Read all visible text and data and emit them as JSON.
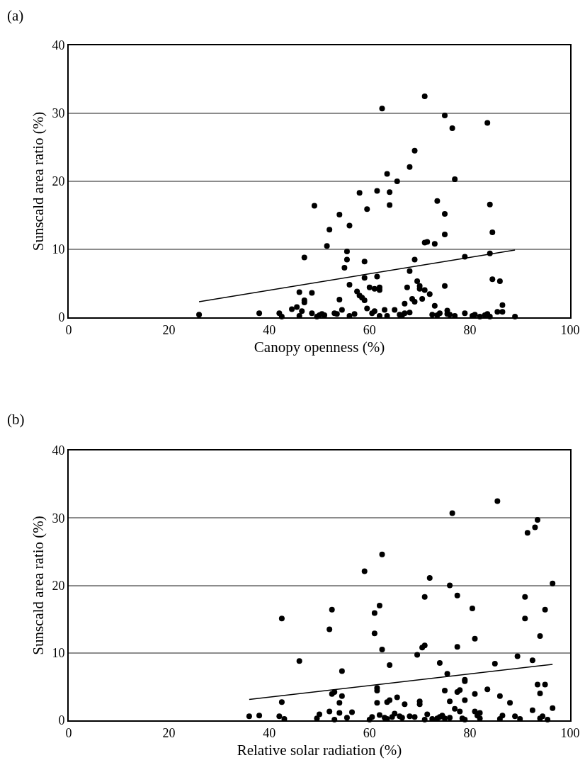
{
  "chart_data": [
    {
      "type": "scatter",
      "annotations": [
        "(a)"
      ],
      "xlabel": "Canopy openness (%)",
      "ylabel": "Sunscald area ratio (%)",
      "xlim": [
        0,
        100
      ],
      "xticks": [
        0,
        20,
        40,
        60,
        80,
        100
      ],
      "ylim": [
        0,
        40
      ],
      "yticks": [
        0,
        10,
        20,
        30,
        40
      ],
      "grid": "y",
      "series": [
        {
          "marker": "circle",
          "color": "#000000",
          "x": [
            26,
            38,
            42,
            42.5,
            44.5,
            45.5,
            46,
            46,
            46.5,
            47,
            47,
            47,
            48.5,
            48.5,
            49,
            49.5,
            50,
            50.5,
            51,
            51.5,
            52,
            53,
            53.5,
            54,
            54,
            54.5,
            55,
            55.5,
            55.5,
            56,
            56,
            56,
            57,
            57.5,
            58,
            58,
            58.5,
            59,
            59,
            59,
            59.5,
            59.5,
            60,
            60.5,
            61,
            61,
            61.5,
            61.5,
            62,
            62,
            62.5,
            62,
            63,
            63.5,
            63.5,
            64,
            64,
            65,
            65.5,
            66,
            66.5,
            67,
            67,
            67.5,
            68,
            68,
            68,
            68.5,
            69,
            69,
            69,
            69.5,
            70,
            70,
            70.5,
            71,
            71,
            71,
            71.5,
            72,
            72.5,
            73,
            73,
            73.5,
            73.5,
            74,
            75,
            75,
            75,
            75,
            75.5,
            75.5,
            76,
            76.5,
            77,
            77,
            79,
            79,
            80.5,
            81,
            82,
            83,
            83.5,
            83.5,
            84,
            84,
            84,
            84.5,
            84.5,
            85.5,
            86,
            86.5,
            86.5,
            89
          ],
          "values": [
            0.4,
            0.6,
            0.6,
            0.1,
            1.2,
            1.5,
            3.7,
            0.2,
            0.9,
            2.5,
            2.2,
            8.8,
            3.6,
            0.6,
            16.4,
            0.1,
            0.3,
            0.5,
            0.3,
            10.5,
            12.9,
            0.6,
            0.5,
            15.1,
            2.6,
            1.1,
            7.3,
            9.7,
            8.5,
            13.5,
            4.8,
            0.2,
            0.5,
            3.8,
            18.3,
            3.2,
            2.9,
            5.8,
            8.2,
            2.5,
            15.9,
            1.3,
            4.4,
            0.6,
            4.2,
            0.9,
            18.6,
            6.0,
            4.0,
            4.4,
            30.7,
            0.2,
            1.1,
            21.1,
            0.2,
            18.4,
            16.5,
            1.1,
            20.0,
            0.4,
            0.3,
            2.0,
            0.6,
            4.4,
            22.1,
            6.8,
            0.7,
            2.7,
            24.5,
            8.5,
            2.3,
            5.3,
            4.6,
            4.2,
            2.7,
            32.5,
            11.0,
            4.0,
            11.1,
            3.4,
            0.4,
            10.8,
            1.7,
            17.1,
            0.3,
            0.6,
            29.7,
            4.6,
            15.2,
            12.2,
            1.0,
            0.5,
            0.4,
            27.8,
            20.3,
            0.2,
            0.6,
            8.9,
            0.2,
            0.4,
            0.1,
            0.3,
            28.6,
            0.5,
            16.6,
            9.4,
            0.1,
            12.5,
            5.6,
            0.8,
            5.3,
            0.8,
            1.8,
            0.1
          ]
        },
        {
          "type": "line",
          "line_style": "solid",
          "color": "#000000",
          "x": [
            26,
            89
          ],
          "values": [
            2.3,
            9.9
          ]
        }
      ]
    },
    {
      "type": "scatter",
      "annotations": [
        "(b)"
      ],
      "xlabel": "Relative solar radiation (%)",
      "ylabel": "Sunscald area ratio (%)",
      "xlim": [
        0,
        100
      ],
      "xticks": [
        0,
        20,
        40,
        60,
        80,
        100
      ],
      "ylim": [
        0,
        40
      ],
      "yticks": [
        0,
        10,
        20,
        30,
        40
      ],
      "grid": "y",
      "series": [
        {
          "marker": "circle",
          "color": "#000000",
          "x": [
            36,
            38,
            42,
            42.5,
            42.5,
            43,
            46,
            49.5,
            50,
            52,
            52,
            52.5,
            52.5,
            53,
            53,
            54,
            54,
            54.5,
            54.5,
            55.5,
            56.5,
            59,
            60,
            60.5,
            61,
            61,
            61.5,
            61.5,
            61.5,
            62,
            62,
            62.5,
            62.5,
            63,
            63.5,
            63.5,
            64,
            64,
            64.5,
            65,
            65.5,
            66,
            66.5,
            67,
            68,
            69,
            69.5,
            70,
            70,
            70.5,
            71,
            71,
            71,
            71.5,
            72,
            72.5,
            73.5,
            74,
            74,
            74.5,
            75,
            75,
            75.5,
            76,
            76,
            76,
            76.5,
            77,
            77.5,
            77.5,
            77.5,
            78,
            78,
            78.5,
            79,
            79,
            79,
            79,
            80.5,
            81,
            81,
            81,
            81.5,
            82,
            82,
            83.5,
            85,
            85.5,
            86,
            86,
            86.5,
            88,
            89,
            89.5,
            90,
            91,
            91,
            91.5,
            92.5,
            92.5,
            93,
            93.5,
            93.5,
            94,
            94,
            94,
            94.5,
            95,
            95,
            95.5,
            96.5,
            96.5
          ],
          "values": [
            0.6,
            0.7,
            0.6,
            2.7,
            15.1,
            0.2,
            8.8,
            0.3,
            0.9,
            13.5,
            1.3,
            16.4,
            3.9,
            4.2,
            0.1,
            2.6,
            1.1,
            7.3,
            3.6,
            0.4,
            1.2,
            22.1,
            0.1,
            0.5,
            15.9,
            12.9,
            4.4,
            4.8,
            2.6,
            0.8,
            17.0,
            10.5,
            24.6,
            0.4,
            2.7,
            0.2,
            8.2,
            3.0,
            0.5,
            1.0,
            3.4,
            0.6,
            0.4,
            2.4,
            0.6,
            0.5,
            9.7,
            2.8,
            2.4,
            10.8,
            11.1,
            18.3,
            0.1,
            0.9,
            21.1,
            0.2,
            0.3,
            8.5,
            0.5,
            0.7,
            4.4,
            0.3,
            6.9,
            0.4,
            2.8,
            20.0,
            30.7,
            1.7,
            18.5,
            4.2,
            10.9,
            4.5,
            1.3,
            0.3,
            6.0,
            5.8,
            0.1,
            3.0,
            16.6,
            3.9,
            12.1,
            1.3,
            0.7,
            1.1,
            0.3,
            4.6,
            8.4,
            32.5,
            3.6,
            0.2,
            0.7,
            2.6,
            0.6,
            9.5,
            0.2,
            18.3,
            15.1,
            27.8,
            8.9,
            1.5,
            28.6,
            5.3,
            29.7,
            12.5,
            4.0,
            0.3,
            0.6,
            5.3,
            16.4,
            0.1,
            20.3,
            1.8
          ]
        },
        {
          "type": "line",
          "line_style": "solid",
          "color": "#000000",
          "x": [
            36,
            96.5
          ],
          "values": [
            3.1,
            8.3
          ]
        }
      ]
    }
  ]
}
